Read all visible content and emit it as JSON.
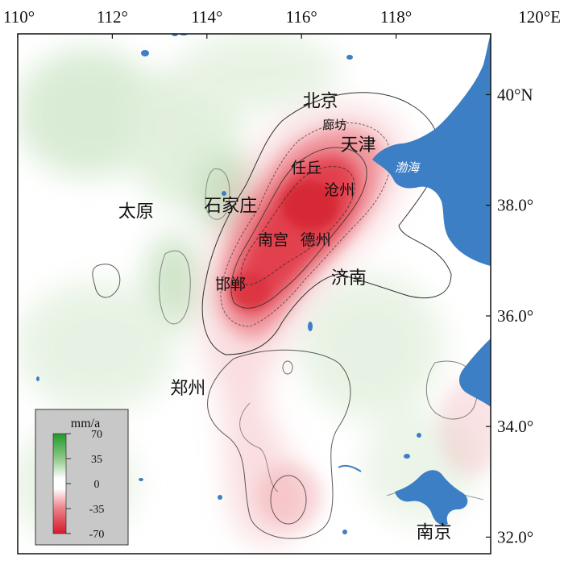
{
  "map": {
    "lon_ticks": [
      {
        "value": 110,
        "label": "110°"
      },
      {
        "value": 112,
        "label": "112°"
      },
      {
        "value": 114,
        "label": "114°"
      },
      {
        "value": 116,
        "label": "116°"
      },
      {
        "value": 118,
        "label": "118°"
      },
      {
        "value": 120,
        "label": "120°E"
      }
    ],
    "lat_ticks": [
      {
        "value": 40,
        "label": "40°N"
      },
      {
        "value": 38,
        "label": "38.0°"
      },
      {
        "value": 36,
        "label": "36.0°"
      },
      {
        "value": 34,
        "label": "34.0°"
      },
      {
        "value": 32,
        "label": "32.0°"
      }
    ],
    "extent": {
      "lon": [
        110,
        120
      ],
      "lat": [
        31.7,
        41.1
      ]
    },
    "cities": [
      {
        "name": "北京",
        "lon": 116.4,
        "lat": 39.9
      },
      {
        "name": "廊坊",
        "lon": 116.7,
        "lat": 39.5
      },
      {
        "name": "天津",
        "lon": 117.2,
        "lat": 39.1
      },
      {
        "name": "任丘",
        "lon": 116.1,
        "lat": 38.7
      },
      {
        "name": "沧州",
        "lon": 116.8,
        "lat": 38.3
      },
      {
        "name": "石家庄",
        "lon": 114.5,
        "lat": 38.0
      },
      {
        "name": "太原",
        "lon": 112.5,
        "lat": 37.9
      },
      {
        "name": "南宫",
        "lon": 115.4,
        "lat": 37.4
      },
      {
        "name": "德州",
        "lon": 116.3,
        "lat": 37.4
      },
      {
        "name": "济南",
        "lon": 117.0,
        "lat": 36.7
      },
      {
        "name": "邯郸",
        "lon": 114.5,
        "lat": 36.6
      },
      {
        "name": "郑州",
        "lon": 113.6,
        "lat": 34.7
      },
      {
        "name": "南京",
        "lon": 118.8,
        "lat": 32.1
      }
    ],
    "sea_label": "渤海"
  },
  "legend": {
    "unit": "mm/a",
    "ticks": [
      "70",
      "35",
      "0",
      "-35",
      "-70"
    ],
    "color_positive": "#1e9a2a",
    "color_negative": "#d8192b"
  },
  "colors": {
    "subsidence": "#e0283a",
    "uplift": "#7bb96b",
    "water": "#3d7fc4"
  }
}
